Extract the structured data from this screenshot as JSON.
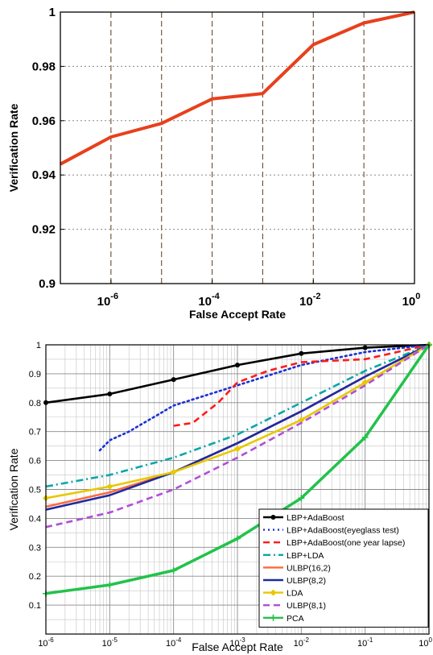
{
  "chart_data": [
    {
      "type": "line",
      "xlabel": "False Accept Rate",
      "ylabel": "Verification Rate",
      "x_scale": "log",
      "xlim": [
        1e-07,
        1
      ],
      "ylim": [
        0.9,
        1
      ],
      "grid": true,
      "legend": "",
      "x_tick_labels": [
        {
          "base": "10",
          "exp": "-6",
          "value": 1e-06
        },
        {
          "base": "10",
          "exp": "-4",
          "value": 0.0001
        },
        {
          "base": "10",
          "exp": "-2",
          "value": 0.01
        },
        {
          "base": "10",
          "exp": "0",
          "value": 1
        }
      ],
      "y_tick_labels": [
        "0.9",
        "0.92",
        "0.94",
        "0.96",
        "0.98",
        "1"
      ],
      "series": [
        {
          "color": "#e8401c",
          "x": [
            1e-07,
            1e-06,
            1e-05,
            0.0001,
            0.001,
            0.01,
            0.1,
            1
          ],
          "y": [
            0.944,
            0.954,
            0.959,
            0.968,
            0.97,
            0.988,
            0.996,
            1.0
          ]
        }
      ]
    },
    {
      "type": "line",
      "xlabel": "False Accept Rate",
      "ylabel": "Verification Rate",
      "x_scale": "log",
      "xlim": [
        1e-06,
        1
      ],
      "ylim": [
        0,
        1
      ],
      "grid": true,
      "legend": "bottom-right",
      "x_tick_labels": [
        {
          "base": "10",
          "exp": "-6",
          "value": 1e-06
        },
        {
          "base": "10",
          "exp": "-5",
          "value": 1e-05
        },
        {
          "base": "10",
          "exp": "-4",
          "value": 0.0001
        },
        {
          "base": "10",
          "exp": "-3",
          "value": 0.001
        },
        {
          "base": "10",
          "exp": "-2",
          "value": 0.01
        },
        {
          "base": "10",
          "exp": "-1",
          "value": 0.1
        },
        {
          "base": "10",
          "exp": "0",
          "value": 1
        }
      ],
      "y_tick_labels": [
        "0.1",
        "0.2",
        "0.3",
        "0.4",
        "0.5",
        "0.6",
        "0.7",
        "0.8",
        "0.9",
        "1"
      ],
      "series": [
        {
          "name": "LBP+AdaBoost",
          "color": "#000000",
          "dash": "solid",
          "marker": "dot",
          "x": [
            1e-06,
            1e-05,
            0.0001,
            0.001,
            0.01,
            0.1,
            1
          ],
          "y": [
            0.8,
            0.83,
            0.88,
            0.93,
            0.97,
            0.99,
            1.0
          ]
        },
        {
          "name": "LBP+AdaBoost(eyeglass test)",
          "color": "#1a2fd6",
          "dash": "dot",
          "marker": "none",
          "x": [
            7e-06,
            1e-05,
            2e-05,
            0.0001,
            0.001,
            0.01,
            0.1,
            1
          ],
          "y": [
            0.635,
            0.67,
            0.7,
            0.79,
            0.86,
            0.93,
            0.975,
            1.0
          ]
        },
        {
          "name": "LBP+AdaBoost(one year lapse)",
          "color": "#ff1a1a",
          "dash": "dash",
          "marker": "none",
          "x": [
            0.0001,
            0.0002,
            0.0005,
            0.001,
            0.003,
            0.01,
            0.1,
            1
          ],
          "y": [
            0.72,
            0.73,
            0.8,
            0.87,
            0.91,
            0.94,
            0.95,
            1.0
          ]
        },
        {
          "name": "LBP+LDA",
          "color": "#0aa6a6",
          "dash": "dashdot",
          "marker": "none",
          "x": [
            1e-06,
            1e-05,
            0.0001,
            0.001,
            0.01,
            0.1,
            1
          ],
          "y": [
            0.51,
            0.55,
            0.61,
            0.69,
            0.8,
            0.91,
            1.0
          ]
        },
        {
          "name": "ULBP(16,2)",
          "color": "#ff6a3d",
          "dash": "solid",
          "marker": "none",
          "x": [
            1e-06,
            1e-05,
            0.0001,
            0.001,
            0.01,
            0.1,
            1
          ],
          "y": [
            0.44,
            0.49,
            0.56,
            0.66,
            0.77,
            0.89,
            1.0
          ]
        },
        {
          "name": "ULBP(8,2)",
          "color": "#1e2aa0",
          "dash": "solid",
          "marker": "none",
          "x": [
            1e-06,
            1e-05,
            0.0001,
            0.001,
            0.01,
            0.1,
            1
          ],
          "y": [
            0.43,
            0.48,
            0.56,
            0.66,
            0.77,
            0.89,
            1.0
          ]
        },
        {
          "name": "LDA",
          "color": "#e8c800",
          "dash": "solid",
          "marker": "diamond",
          "x": [
            1e-06,
            1e-05,
            0.0001,
            0.001,
            0.01,
            0.1,
            1
          ],
          "y": [
            0.47,
            0.51,
            0.56,
            0.64,
            0.74,
            0.87,
            1.0
          ]
        },
        {
          "name": "ULBP(8,1)",
          "color": "#b04fd6",
          "dash": "dash",
          "marker": "none",
          "x": [
            1e-06,
            1e-05,
            0.0001,
            0.001,
            0.01,
            0.1,
            1
          ],
          "y": [
            0.37,
            0.42,
            0.5,
            0.61,
            0.73,
            0.86,
            1.0
          ]
        },
        {
          "name": "PCA",
          "color": "#22c24a",
          "dash": "solid",
          "marker": "plus",
          "x": [
            1e-06,
            1e-05,
            0.0001,
            0.001,
            0.01,
            0.1,
            1
          ],
          "y": [
            0.14,
            0.17,
            0.22,
            0.33,
            0.47,
            0.68,
            1.0
          ]
        }
      ]
    }
  ]
}
